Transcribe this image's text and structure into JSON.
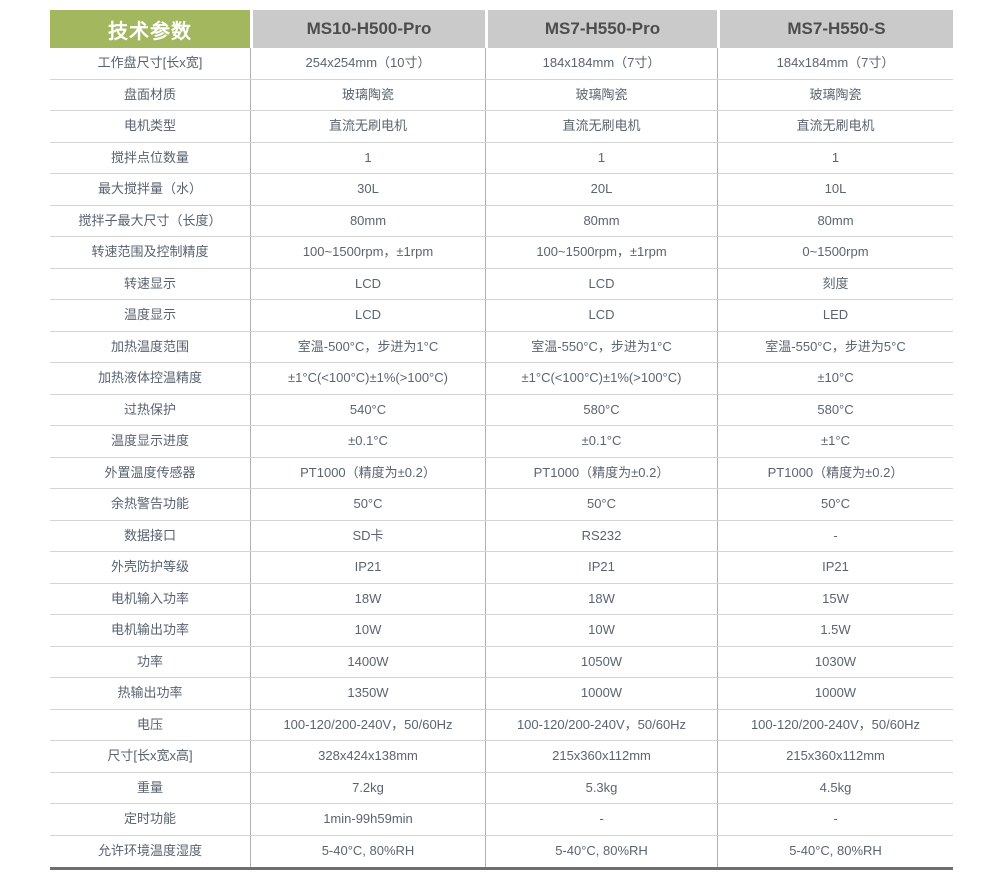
{
  "table": {
    "header": {
      "param_label": "技术参数",
      "models": [
        "MS10-H500-Pro",
        "MS7-H550-Pro",
        "MS7-H550-S"
      ]
    },
    "rows": [
      {
        "label": "工作盘尺寸[长x宽]",
        "values": [
          "254x254mm（10寸）",
          "184x184mm（7寸）",
          "184x184mm（7寸）"
        ]
      },
      {
        "label": "盘面材质",
        "values": [
          "玻璃陶瓷",
          "玻璃陶瓷",
          "玻璃陶瓷"
        ]
      },
      {
        "label": "电机类型",
        "values": [
          "直流无刷电机",
          "直流无刷电机",
          "直流无刷电机"
        ]
      },
      {
        "label": "搅拌点位数量",
        "values": [
          "1",
          "1",
          "1"
        ]
      },
      {
        "label": "最大搅拌量（水）",
        "values": [
          "30L",
          "20L",
          "10L"
        ]
      },
      {
        "label": "搅拌子最大尺寸（长度）",
        "values": [
          "80mm",
          "80mm",
          "80mm"
        ]
      },
      {
        "label": "转速范围及控制精度",
        "values": [
          "100~1500rpm，±1rpm",
          "100~1500rpm，±1rpm",
          "0~1500rpm"
        ]
      },
      {
        "label": "转速显示",
        "values": [
          "LCD",
          "LCD",
          "刻度"
        ]
      },
      {
        "label": "温度显示",
        "values": [
          "LCD",
          "LCD",
          "LED"
        ]
      },
      {
        "label": "加热温度范围",
        "values": [
          "室温-500°C，步进为1°C",
          "室温-550°C，步进为1°C",
          "室温-550°C，步进为5°C"
        ]
      },
      {
        "label": "加热液体控温精度",
        "values": [
          "±1°C(<100°C)±1%(>100°C)",
          "±1°C(<100°C)±1%(>100°C)",
          "±10°C"
        ]
      },
      {
        "label": "过热保护",
        "values": [
          "540°C",
          "580°C",
          "580°C"
        ]
      },
      {
        "label": "温度显示进度",
        "values": [
          "±0.1°C",
          "±0.1°C",
          "±1°C"
        ]
      },
      {
        "label": "外置温度传感器",
        "values": [
          "PT1000（精度为±0.2）",
          "PT1000（精度为±0.2）",
          "PT1000（精度为±0.2）"
        ]
      },
      {
        "label": "余热警告功能",
        "values": [
          "50°C",
          "50°C",
          "50°C"
        ]
      },
      {
        "label": "数据接口",
        "values": [
          "SD卡",
          "RS232",
          "-"
        ]
      },
      {
        "label": "外壳防护等级",
        "values": [
          "IP21",
          "IP21",
          "IP21"
        ]
      },
      {
        "label": "电机输入功率",
        "values": [
          "18W",
          "18W",
          "15W"
        ]
      },
      {
        "label": "电机输出功率",
        "values": [
          "10W",
          "10W",
          "1.5W"
        ]
      },
      {
        "label": "功率",
        "values": [
          "1400W",
          "1050W",
          "1030W"
        ]
      },
      {
        "label": "热输出功率",
        "values": [
          "1350W",
          "1000W",
          "1000W"
        ]
      },
      {
        "label": "电压",
        "values": [
          "100-120/200-240V，50/60Hz",
          "100-120/200-240V，50/60Hz",
          "100-120/200-240V，50/60Hz"
        ]
      },
      {
        "label": "尺寸[长x宽x高]",
        "values": [
          "328x424x138mm",
          "215x360x112mm",
          "215x360x112mm"
        ]
      },
      {
        "label": "重量",
        "values": [
          "7.2kg",
          "5.3kg",
          "4.5kg"
        ]
      },
      {
        "label": "定时功能",
        "values": [
          "1min-99h59min",
          "-",
          "-"
        ]
      },
      {
        "label": "允许环境温度湿度",
        "values": [
          "5-40°C, 80%RH",
          "5-40°C, 80%RH",
          "5-40°C, 80%RH"
        ]
      }
    ],
    "colors": {
      "header_green": "#a3b75f",
      "header_gray": "#cacaca",
      "header_text": "#4d4d4d",
      "body_text": "#5b6470",
      "row_line": "#d4d4d4",
      "column_line": "#b0b0b0",
      "bottom_border": "#6f6f6f"
    }
  }
}
